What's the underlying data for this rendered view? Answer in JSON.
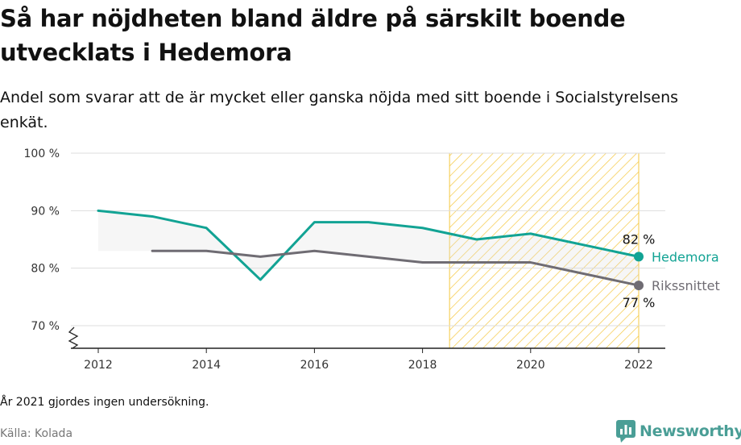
{
  "header": {
    "title": "Så har nöjdheten bland äldre på särskilt boende utvecklats i Hedemora",
    "subtitle": "Andel som svarar att de är mycket eller ganska nöjda med sitt boende i Socialstyrelsens enkät."
  },
  "footer": {
    "note": "År 2021 gjordes ingen undersökning.",
    "source": "Källa: Kolada",
    "brand": "Newsworthy"
  },
  "colors": {
    "hedemora": "#12a394",
    "riks": "#6f6c73",
    "highlight": "#f5c842",
    "grid": "#dddddd"
  },
  "chart_data": {
    "type": "line",
    "x_ticks": [
      2012,
      2014,
      2016,
      2018,
      2020,
      2022
    ],
    "y_ticks": [
      70,
      80,
      90,
      100
    ],
    "y_tick_labels": [
      "70 %",
      "80 %",
      "90 %",
      "100 %"
    ],
    "xlim": [
      2011.6,
      2022.5
    ],
    "ylim": [
      67,
      100
    ],
    "axis_break": true,
    "grid": true,
    "highlight_range": [
      2018.5,
      2022
    ],
    "series": [
      {
        "name": "Hedemora",
        "x": [
          2012,
          2013,
          2014,
          2015,
          2016,
          2017,
          2018,
          2019,
          2020,
          2022
        ],
        "values": [
          90,
          89,
          87,
          78,
          88,
          88,
          87,
          85,
          86,
          82
        ],
        "end_label": "82 %"
      },
      {
        "name": "Rikssnittet",
        "x": [
          2013,
          2014,
          2015,
          2016,
          2017,
          2018,
          2019,
          2020,
          2022
        ],
        "values": [
          83,
          83,
          82,
          83,
          82,
          81,
          81,
          81,
          77
        ],
        "end_label": "77 %"
      }
    ]
  }
}
